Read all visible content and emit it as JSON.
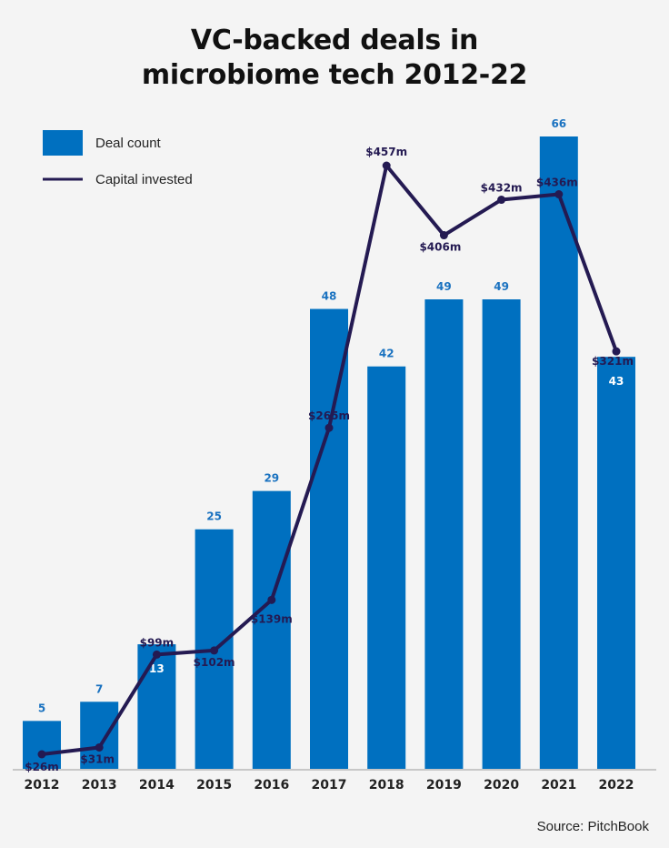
{
  "chart_data": {
    "type": "bar",
    "title_lines": [
      "VC-backed deals in",
      "microbiome tech 2012-22"
    ],
    "categories": [
      "2012",
      "2013",
      "2014",
      "2015",
      "2016",
      "2017",
      "2018",
      "2019",
      "2020",
      "2021",
      "2022"
    ],
    "series": [
      {
        "name": "Deal count",
        "type": "bar",
        "values": [
          5,
          7,
          13,
          25,
          29,
          48,
          42,
          49,
          49,
          66,
          43
        ],
        "labels": [
          "5",
          "7",
          "13",
          "25",
          "29",
          "48",
          "42",
          "49",
          "49",
          "66",
          "43"
        ]
      },
      {
        "name": "Capital invested",
        "type": "line",
        "unit": "$m",
        "values": [
          26,
          31,
          99,
          102,
          139,
          265,
          457,
          406,
          432,
          436,
          321
        ],
        "labels": [
          "$26m",
          "$31m",
          "$99m",
          "$102m",
          "$139m",
          "$265m",
          "$457m",
          "$406m",
          "$432m",
          "$436m",
          "$321m"
        ]
      }
    ],
    "legend": {
      "position": "top-left",
      "items": [
        "Deal count",
        "Capital invested"
      ]
    },
    "grid": false,
    "bar_color": "#0070c0",
    "line_color": "#241a52",
    "bar_label_color_outside": "#1a72c0",
    "bar_label_color_inside": "#ffffff",
    "source": "Source: PitchBook"
  }
}
